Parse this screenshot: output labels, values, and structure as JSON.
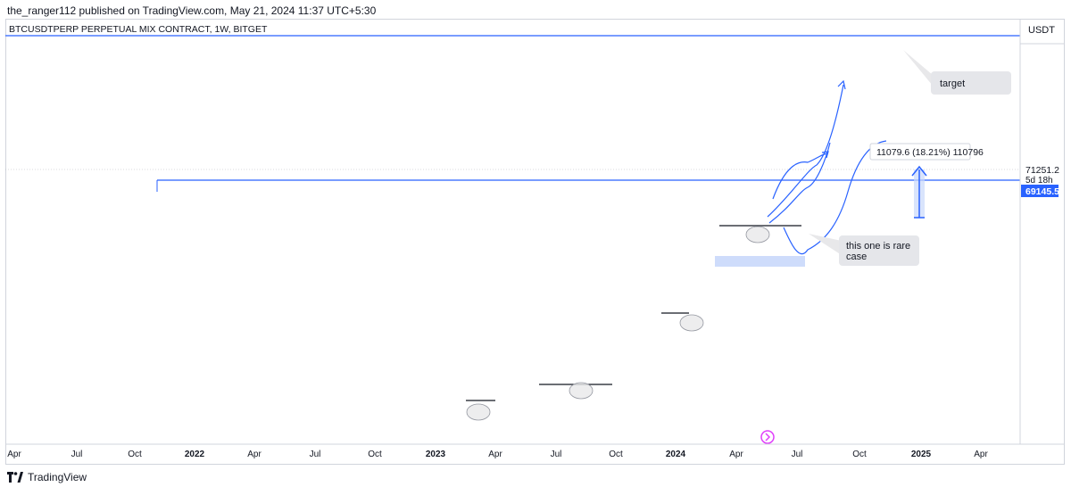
{
  "header": {
    "published_line": "the_ranger112 published on TradingView.com, May 21, 2024 11:37 UTC+5:30"
  },
  "chart_data": {
    "type": "candlestick",
    "title": "BTCUSDTPERP PERPETUAL MIX CONTRACT, 1W, BITGET",
    "currency": "USDT",
    "y_scale": "log",
    "ylim": [
      13500,
      100000
    ],
    "y_ticks": [
      "95000.0",
      "90000.0",
      "85000.0",
      "80000.0",
      "75000.0",
      "70000.0",
      "65000.0",
      "60000.0",
      "55000.0",
      "50000.0",
      "45000.0",
      "40000.0",
      "35000.0",
      "30000.0",
      "25000.0",
      "20000.0",
      "15000.0"
    ],
    "x_ticks": [
      "Apr",
      "Jul",
      "Oct",
      "2022",
      "Apr",
      "Jul",
      "Oct",
      "2023",
      "Apr",
      "Jul",
      "Oct",
      "2024",
      "Apr",
      "Jul",
      "Oct",
      "2025",
      "Apr"
    ],
    "price_labels": {
      "last_price": "71251.2",
      "countdown": "5d 18h",
      "level": "69145.5"
    },
    "annotations": {
      "target": "target",
      "rare_case": "this one is rare\ncase",
      "measure": "11079.6 (18.21%) 110796"
    },
    "horizontal_lines": [
      {
        "price": 98000,
        "color": "#2962ff"
      },
      {
        "price": 69145.5,
        "color": "#2962ff"
      }
    ],
    "colors": {
      "line": "#2962ff",
      "zone": "#c9d8fb",
      "candle": "#000000",
      "bg": "#ffffff"
    }
  },
  "footer": {
    "brand": "TradingView"
  }
}
